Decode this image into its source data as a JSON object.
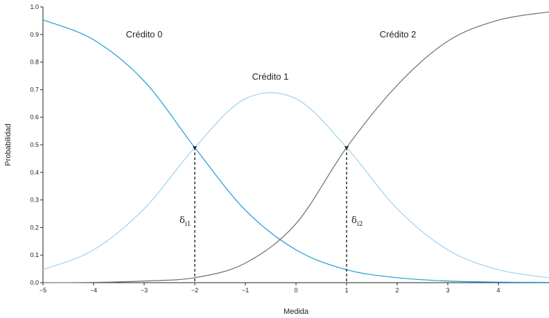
{
  "chart_data": {
    "type": "line",
    "xlabel": "Medida",
    "ylabel": "Probabilidad",
    "xlim": [
      -5,
      5
    ],
    "ylim": [
      0,
      1
    ],
    "x_ticks": [
      -5,
      -4,
      -3,
      -2,
      -1,
      0,
      1,
      2,
      3,
      4
    ],
    "x_tick_labels": [
      "−5",
      "−4",
      "−3",
      "−2",
      "−1",
      "0",
      "1",
      "2",
      "3",
      "4"
    ],
    "y_ticks": [
      0,
      0.1,
      0.2,
      0.3,
      0.4,
      0.5,
      0.6,
      0.7,
      0.8,
      0.9,
      1.0
    ],
    "y_tick_labels": [
      "0.0",
      "0.1",
      "0.2",
      "0.3",
      "0.4",
      "0.5",
      "0.6",
      "0.7",
      "0.8",
      "0.9",
      "1.0"
    ],
    "thresholds": [
      -2,
      1
    ],
    "threshold_value": 0.49,
    "threshold_labels": [
      {
        "symbol": "δ",
        "sub": "i1"
      },
      {
        "symbol": "δ",
        "sub": "i2"
      }
    ],
    "colors": {
      "credito0": "#1a9ad6",
      "credito1": "#9dd1f0",
      "credito2": "#6e6e6e",
      "axis": "#222222"
    },
    "series": [
      {
        "name": "Crédito 0",
        "key": "credito0",
        "x": [
          -5,
          -4,
          -3,
          -2,
          -1,
          0,
          1,
          2,
          3,
          4,
          5
        ],
        "y": [
          0.953,
          0.881,
          0.731,
          0.49,
          0.263,
          0.119,
          0.047,
          0.018,
          0.006,
          0.002,
          0.001
        ]
      },
      {
        "name": "Crédito 1",
        "key": "credito1",
        "x": [
          -5,
          -4,
          -3,
          -2,
          -1,
          0,
          1,
          2,
          3,
          4,
          5
        ],
        "y": [
          0.047,
          0.119,
          0.268,
          0.49,
          0.667,
          0.667,
          0.49,
          0.268,
          0.119,
          0.047,
          0.018
        ]
      },
      {
        "name": "Crédito 2",
        "key": "credito2",
        "x": [
          -5,
          -4,
          -3,
          -2,
          -1,
          0,
          1,
          2,
          3,
          4,
          5
        ],
        "y": [
          0.0,
          0.001,
          0.006,
          0.018,
          0.071,
          0.214,
          0.49,
          0.716,
          0.876,
          0.952,
          0.982
        ]
      }
    ]
  }
}
